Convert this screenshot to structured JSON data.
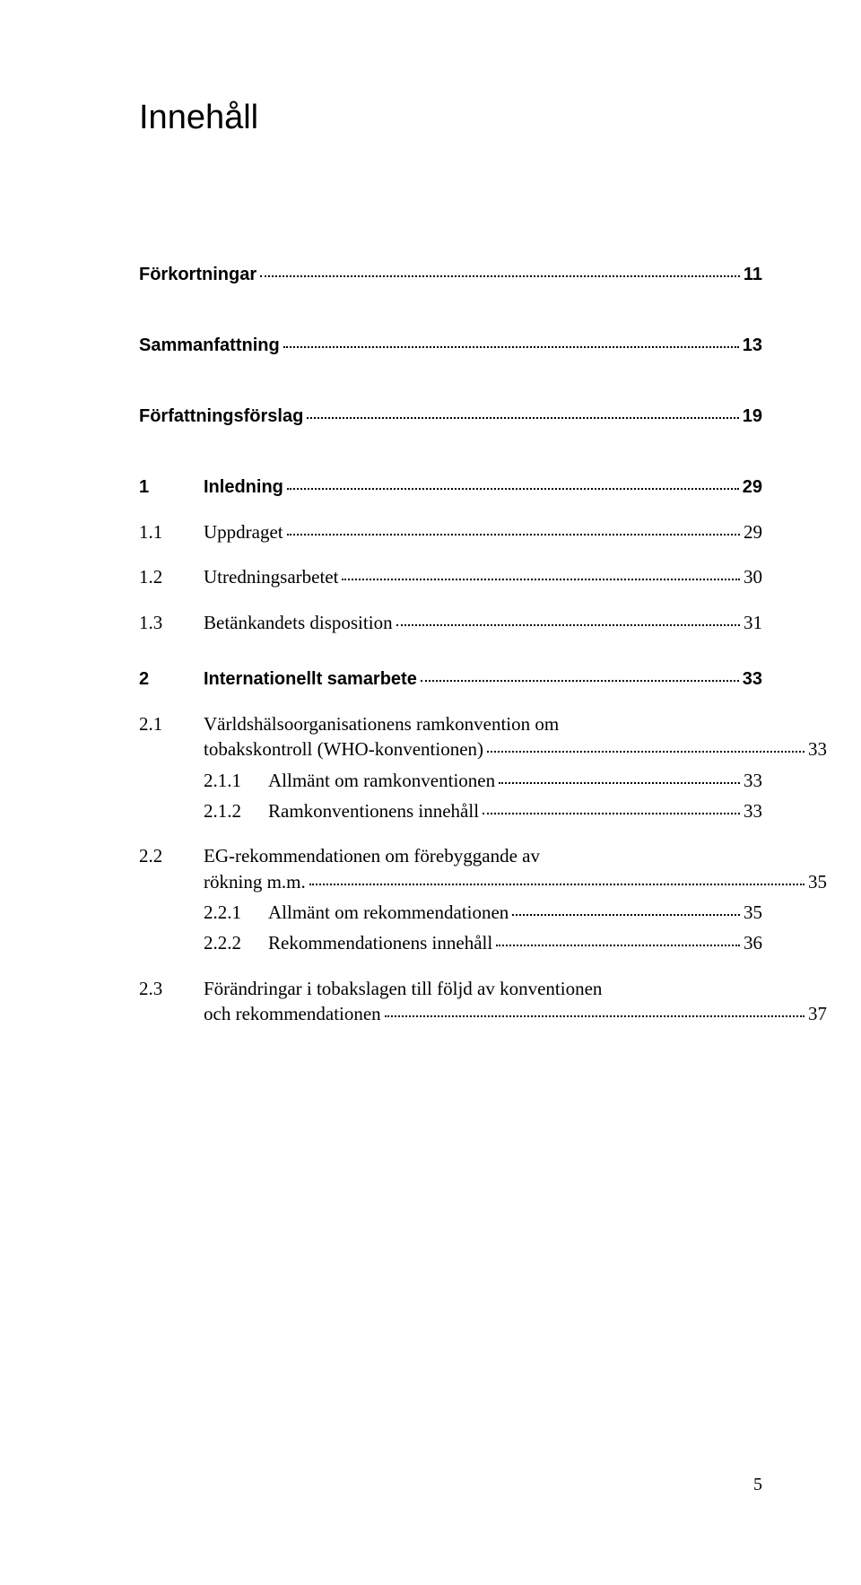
{
  "title": "Innehåll",
  "footer_page": "5",
  "toc": {
    "forkort": {
      "label": "Förkortningar",
      "page": "11"
    },
    "samman": {
      "label": "Sammanfattning",
      "page": "13"
    },
    "forfat": {
      "label": "Författningsförslag",
      "page": "19"
    },
    "s1": {
      "num": "1",
      "label": "Inledning",
      "page": "29"
    },
    "s1_1": {
      "num": "1.1",
      "label": "Uppdraget",
      "page": "29"
    },
    "s1_2": {
      "num": "1.2",
      "label": "Utredningsarbetet",
      "page": "30"
    },
    "s1_3": {
      "num": "1.3",
      "label": "Betänkandets disposition",
      "page": "31"
    },
    "s2": {
      "num": "2",
      "label": "Internationellt samarbete",
      "page": "33"
    },
    "s2_1": {
      "num": "2.1",
      "label_a": "Världshälsoorganisationens ramkonvention om",
      "label_b": "tobakskontroll (WHO-konventionen)",
      "page": "33"
    },
    "s2_1_1": {
      "num": "2.1.1",
      "label": "Allmänt om ramkonventionen",
      "page": "33"
    },
    "s2_1_2": {
      "num": "2.1.2",
      "label": "Ramkonventionens innehåll",
      "page": "33"
    },
    "s2_2": {
      "num": "2.2",
      "label_a": "EG-rekommendationen om förebyggande av",
      "label_b": "rökning m.m.",
      "page": "35"
    },
    "s2_2_1": {
      "num": "2.2.1",
      "label": "Allmänt om rekommendationen",
      "page": "35"
    },
    "s2_2_2": {
      "num": "2.2.2",
      "label": "Rekommendationens innehåll",
      "page": "36"
    },
    "s2_3": {
      "num": "2.3",
      "label_a": "Förändringar i tobakslagen till följd av konventionen",
      "label_b": "och rekommendationen",
      "page": "37"
    }
  }
}
